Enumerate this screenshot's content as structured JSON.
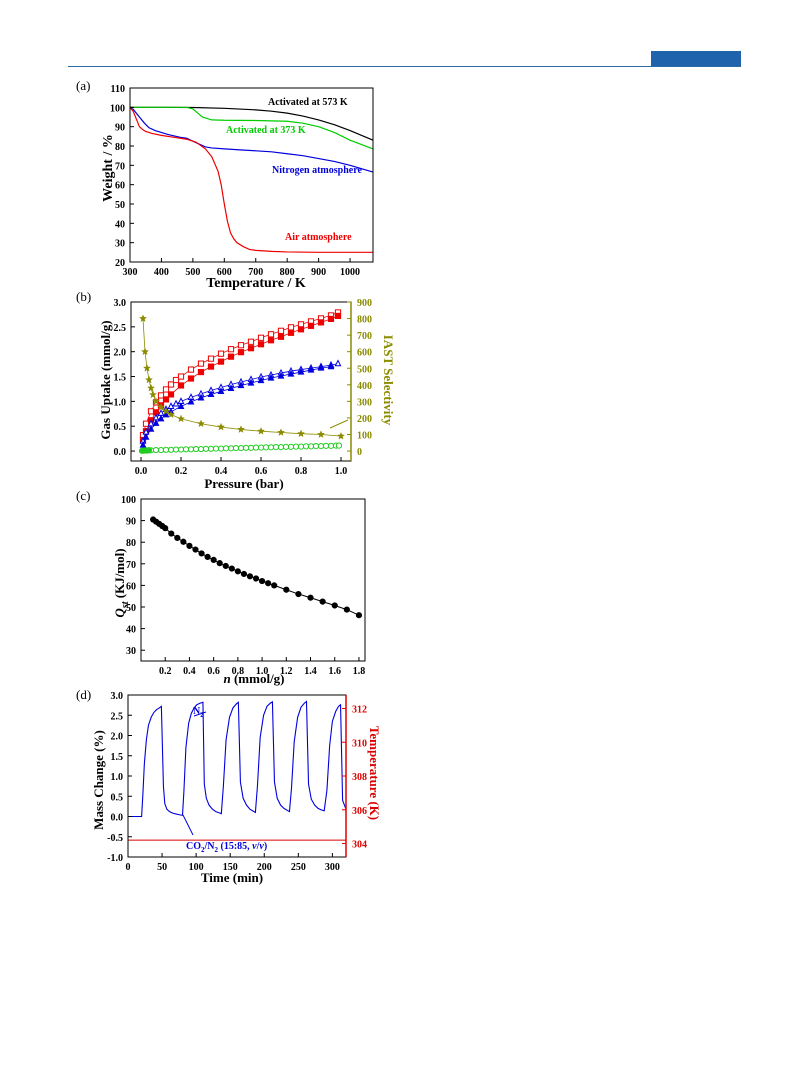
{
  "page": {
    "accent_color": "#1f63ad"
  },
  "panels": [
    {
      "label": "(a)",
      "chart": {
        "type": "line",
        "xlabel": "Temperature / K",
        "ylabel": "Weight / %",
        "xlim": [
          300,
          1073
        ],
        "ylim": [
          20,
          110
        ],
        "xticks": [
          300,
          400,
          500,
          600,
          700,
          800,
          900,
          1000
        ],
        "yticks": [
          20,
          30,
          40,
          50,
          60,
          70,
          80,
          90,
          100,
          110
        ],
        "series": [
          {
            "name": "Activated at 573 K",
            "color": "#000000",
            "x": [
              300,
              400,
              500,
              600,
              700,
              750,
              800,
              850,
              900,
              950,
              1000,
              1073
            ],
            "y": [
              100,
              100,
              99.9,
              99.5,
              98.7,
              98,
              97,
              95.5,
              93.5,
              91,
              88,
              83
            ]
          },
          {
            "name": "Activated at 373 K",
            "color": "#00cc00",
            "x": [
              300,
              400,
              480,
              500,
              530,
              560,
              600,
              700,
              800,
              850,
              900,
              950,
              1000,
              1073
            ],
            "y": [
              100,
              100,
              100,
              99.2,
              95,
              93.5,
              93.3,
              93.2,
              92.8,
              91.8,
              90,
              87,
              83,
              78.5
            ]
          },
          {
            "name": "Nitrogen atmosphere",
            "color": "#0000dd",
            "x": [
              300,
              310,
              320,
              330,
              345,
              360,
              380,
              420,
              460,
              480,
              500,
              520,
              540,
              560,
              600,
              650,
              700,
              750,
              800,
              850,
              900,
              950,
              1000,
              1073
            ],
            "y": [
              100,
              99,
              97,
              95,
              92,
              89.5,
              88,
              86,
              84.5,
              84,
              82.5,
              81,
              79.5,
              79,
              78.5,
              78,
              77.5,
              77,
              76,
              75,
              73.5,
              72,
              70,
              66.5
            ]
          },
          {
            "name": "Air atmosphere",
            "color": "#ee0000",
            "x": [
              300,
              310,
              320,
              330,
              340,
              350,
              370,
              400,
              440,
              480,
              510,
              540,
              560,
              580,
              590,
              600,
              610,
              620,
              630,
              640,
              660,
              680,
              700,
              750,
              800,
              900,
              1000,
              1073
            ],
            "y": [
              100,
              98,
              94,
              90,
              88.5,
              87.5,
              86.5,
              85.5,
              84.5,
              83.5,
              82,
              78.5,
              74.5,
              67,
              60,
              50,
              41,
              35,
              32,
              30,
              28,
              26.5,
              26,
              25.5,
              25.2,
              25,
              25,
              25
            ]
          }
        ],
        "annotations": [
          "Activated at 573 K",
          "Activated at 373 K",
          "Nitrogen atmosphere",
          "Air atmosphere"
        ]
      }
    },
    {
      "label": "(b)",
      "chart": {
        "type": "scatter",
        "xlabel": "Pressure (bar)",
        "ylabel": "Gas Uptake (mmol/g)",
        "y2label": "IAST Selectivity",
        "xlim": [
          -0.05,
          1.05
        ],
        "ylim": [
          -0.2,
          3.0
        ],
        "y2lim": [
          -60,
          900
        ],
        "xticks": [
          "0.0",
          "0.2",
          "0.4",
          "0.6",
          "0.8",
          "1.0"
        ],
        "yticks": [
          "0.0",
          "0.5",
          "1.0",
          "1.5",
          "2.0",
          "2.5",
          "3.0"
        ],
        "y2ticks": [
          "0",
          "100",
          "200",
          "300",
          "400",
          "500",
          "600",
          "700",
          "800",
          "900"
        ],
        "series": [
          {
            "marker": "square-open",
            "color": "#ee0000",
            "axis": "left",
            "x": [
              0.01,
              0.025,
              0.05,
              0.075,
              0.1,
              0.125,
              0.15,
              0.175,
              0.2,
              0.25,
              0.3,
              0.35,
              0.4,
              0.45,
              0.5,
              0.55,
              0.6,
              0.65,
              0.7,
              0.75,
              0.8,
              0.85,
              0.9,
              0.95,
              0.985
            ],
            "y": [
              0.32,
              0.55,
              0.8,
              0.98,
              1.12,
              1.24,
              1.34,
              1.43,
              1.5,
              1.64,
              1.76,
              1.86,
              1.96,
              2.05,
              2.13,
              2.2,
              2.28,
              2.35,
              2.42,
              2.49,
              2.55,
              2.61,
              2.67,
              2.73,
              2.79
            ]
          },
          {
            "marker": "square-filled",
            "color": "#ee0000",
            "axis": "left",
            "x": [
              0.01,
              0.025,
              0.05,
              0.075,
              0.1,
              0.125,
              0.15,
              0.2,
              0.25,
              0.3,
              0.35,
              0.4,
              0.45,
              0.5,
              0.55,
              0.6,
              0.65,
              0.7,
              0.75,
              0.8,
              0.85,
              0.9,
              0.95,
              0.985
            ],
            "y": [
              0.22,
              0.4,
              0.62,
              0.78,
              0.92,
              1.04,
              1.14,
              1.32,
              1.46,
              1.59,
              1.7,
              1.8,
              1.9,
              1.99,
              2.07,
              2.15,
              2.23,
              2.3,
              2.38,
              2.45,
              2.52,
              2.59,
              2.66,
              2.72
            ]
          },
          {
            "marker": "triangle-open",
            "color": "#0000dd",
            "axis": "left",
            "x": [
              0.01,
              0.025,
              0.05,
              0.075,
              0.1,
              0.125,
              0.15,
              0.175,
              0.2,
              0.25,
              0.3,
              0.35,
              0.4,
              0.45,
              0.5,
              0.55,
              0.6,
              0.65,
              0.7,
              0.75,
              0.8,
              0.85,
              0.9,
              0.95,
              0.985
            ],
            "y": [
              0.2,
              0.38,
              0.55,
              0.67,
              0.76,
              0.84,
              0.9,
              0.95,
              1.0,
              1.08,
              1.15,
              1.22,
              1.28,
              1.34,
              1.39,
              1.44,
              1.49,
              1.53,
              1.57,
              1.61,
              1.64,
              1.67,
              1.7,
              1.73,
              1.76
            ]
          },
          {
            "marker": "triangle-filled",
            "color": "#0000dd",
            "axis": "left",
            "x": [
              0.01,
              0.025,
              0.05,
              0.075,
              0.1,
              0.125,
              0.15,
              0.2,
              0.25,
              0.3,
              0.35,
              0.4,
              0.45,
              0.5,
              0.55,
              0.6,
              0.65,
              0.7,
              0.75,
              0.8,
              0.85,
              0.9,
              0.95
            ],
            "y": [
              0.12,
              0.28,
              0.44,
              0.56,
              0.65,
              0.73,
              0.79,
              0.9,
              0.99,
              1.07,
              1.14,
              1.2,
              1.26,
              1.32,
              1.37,
              1.42,
              1.47,
              1.51,
              1.55,
              1.59,
              1.63,
              1.67,
              1.7
            ]
          },
          {
            "marker": "circle-open",
            "color": "#22cc22",
            "axis": "left",
            "x": [
              0.01,
              0.02,
              0.03,
              0.04,
              0.05,
              0.075,
              0.1,
              0.125,
              0.15,
              0.175,
              0.2,
              0.225,
              0.25,
              0.275,
              0.3,
              0.325,
              0.35,
              0.375,
              0.4,
              0.425,
              0.45,
              0.475,
              0.5,
              0.525,
              0.55,
              0.575,
              0.6,
              0.625,
              0.65,
              0.675,
              0.7,
              0.725,
              0.75,
              0.775,
              0.8,
              0.825,
              0.85,
              0.875,
              0.9,
              0.925,
              0.95,
              0.975,
              0.99
            ],
            "y": [
              0.01,
              0.01,
              0.01,
              0.015,
              0.015,
              0.02,
              0.02,
              0.025,
              0.025,
              0.03,
              0.03,
              0.035,
              0.035,
              0.04,
              0.04,
              0.045,
              0.045,
              0.05,
              0.05,
              0.055,
              0.055,
              0.06,
              0.06,
              0.065,
              0.065,
              0.07,
              0.07,
              0.075,
              0.075,
              0.08,
              0.08,
              0.085,
              0.085,
              0.09,
              0.09,
              0.095,
              0.095,
              0.1,
              0.1,
              0.105,
              0.105,
              0.11,
              0.11
            ]
          },
          {
            "marker": "circle-filled",
            "color": "#22cc22",
            "axis": "left",
            "x": [
              0.005,
              0.01,
              0.015,
              0.02,
              0.03,
              0.04
            ],
            "y": [
              0.005,
              0.008,
              0.01,
              0.012,
              0.015,
              0.018
            ]
          },
          {
            "marker": "star",
            "color": "#8b8b00",
            "axis": "right",
            "x": [
              0.01,
              0.02,
              0.03,
              0.04,
              0.05,
              0.06,
              0.075,
              0.1,
              0.125,
              0.15,
              0.2,
              0.3,
              0.4,
              0.5,
              0.6,
              0.7,
              0.8,
              0.9,
              1.0
            ],
            "y": [
              800,
              600,
              500,
              430,
              380,
              340,
              300,
              265,
              240,
              220,
              195,
              165,
              145,
              130,
              120,
              112,
              105,
              100,
              90
            ]
          }
        ]
      }
    },
    {
      "label": "(c)",
      "chart": {
        "type": "line",
        "xlabel": "n (mmol/g)",
        "ylabel": "Qst (KJ/mol)",
        "xlim": [
          0.0,
          1.85
        ],
        "ylim": [
          25,
          100
        ],
        "xticks": [
          "0.2",
          "0.4",
          "0.6",
          "0.8",
          "1.0",
          "1.2",
          "1.4",
          "1.6",
          "1.8"
        ],
        "yticks": [
          "30",
          "40",
          "50",
          "60",
          "70",
          "80",
          "90",
          "100"
        ],
        "series": [
          {
            "color": "#000000",
            "x": [
              0.1,
              0.125,
              0.15,
              0.175,
              0.2,
              0.25,
              0.3,
              0.35,
              0.4,
              0.45,
              0.5,
              0.55,
              0.6,
              0.65,
              0.7,
              0.75,
              0.8,
              0.85,
              0.9,
              0.95,
              1.0,
              1.05,
              1.1,
              1.2,
              1.3,
              1.4,
              1.5,
              1.6,
              1.7,
              1.8
            ],
            "y": [
              90.5,
              89.5,
              88.5,
              87.5,
              86.5,
              84.0,
              82.0,
              80.2,
              78.3,
              76.6,
              74.8,
              73.2,
              71.8,
              70.3,
              69.0,
              67.8,
              66.5,
              65.3,
              64.2,
              63.2,
              62.0,
              61.0,
              60.0,
              58.0,
              56.0,
              54.3,
              52.5,
              50.7,
              48.8,
              46.2
            ]
          }
        ]
      }
    },
    {
      "label": "(d)",
      "chart": {
        "type": "line",
        "xlabel": "Time (min)",
        "ylabel": "Mass Change (%)",
        "y2label": "Temperature (K)",
        "xlim": [
          0,
          320
        ],
        "ylim": [
          -1.0,
          3.0
        ],
        "y2lim": [
          303.2,
          312.8
        ],
        "xticks": [
          "0",
          "50",
          "100",
          "150",
          "200",
          "250",
          "300"
        ],
        "yticks": [
          "-1.0",
          "-0.5",
          "0.0",
          "0.5",
          "1.0",
          "1.5",
          "2.0",
          "2.5",
          "3.0"
        ],
        "y2ticks": [
          "304",
          "306",
          "308",
          "310",
          "312"
        ],
        "series": [
          {
            "name": "Mass Change",
            "color": "#0000dd",
            "axis": "left",
            "x": [
              0,
              20,
              22,
              24,
              27,
              30,
              34,
              38,
              42,
              46,
              49,
              52,
              54,
              57,
              61,
              66,
              71,
              76,
              80,
              82,
              85,
              89,
              93,
              97,
              101,
              106,
              110,
              112,
              115,
              119,
              124,
              129,
              134,
              137,
              140,
              144,
              149,
              154,
              159,
              162,
              165,
              169,
              174,
              179,
              184,
              187,
              190,
              194,
              199,
              204,
              209,
              212,
              215,
              219,
              224,
              229,
              234,
              237,
              240,
              244,
              249,
              254,
              259,
              262,
              265,
              269,
              274,
              279,
              284,
              288,
              292,
              296,
              300,
              305,
              309,
              312,
              315,
              320
            ],
            "y": [
              0.0,
              0.0,
              0.6,
              1.3,
              1.9,
              2.25,
              2.45,
              2.57,
              2.64,
              2.68,
              2.72,
              0.75,
              0.32,
              0.18,
              0.12,
              0.08,
              0.06,
              0.04,
              0.03,
              0.6,
              1.7,
              2.3,
              2.55,
              2.68,
              2.76,
              2.8,
              2.82,
              0.8,
              0.45,
              0.28,
              0.18,
              0.12,
              0.09,
              0.07,
              0.75,
              1.9,
              2.45,
              2.68,
              2.78,
              2.82,
              0.85,
              0.45,
              0.28,
              0.18,
              0.13,
              0.1,
              0.75,
              1.95,
              2.5,
              2.72,
              2.8,
              2.83,
              0.85,
              0.45,
              0.28,
              0.2,
              0.15,
              0.12,
              0.7,
              1.85,
              2.45,
              2.7,
              2.8,
              2.84,
              0.8,
              0.43,
              0.28,
              0.2,
              0.16,
              0.14,
              0.65,
              1.75,
              2.35,
              2.6,
              2.72,
              2.76,
              0.4,
              0.18
            ]
          },
          {
            "name": "Temperature",
            "color": "#dd0000",
            "axis": "right",
            "x": [
              0,
              320
            ],
            "y": [
              304.2,
              304.2
            ]
          }
        ],
        "annotations": {
          "n2": "N2",
          "mix": "CO2/N2 (15:85, v/v)"
        }
      }
    }
  ]
}
